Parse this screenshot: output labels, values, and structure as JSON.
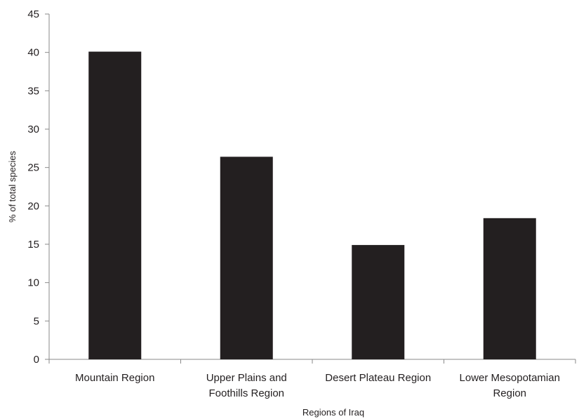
{
  "chart_data": {
    "type": "bar",
    "title": "",
    "xlabel": "Regions of Iraq",
    "ylabel": "% of total species",
    "ylim": [
      0,
      45
    ],
    "yticks": [
      0,
      5,
      10,
      15,
      20,
      25,
      30,
      35,
      40,
      45
    ],
    "grid": false,
    "categories": [
      "Mountain Region",
      "Upper Plains and Foothills Region",
      "Desert Plateau Region",
      "Lower Mesopotamian Region"
    ],
    "category_lines": [
      [
        "Mountain Region"
      ],
      [
        "Upper Plains and",
        "Foothills Region"
      ],
      [
        "Desert Plateau  Region"
      ],
      [
        "Lower Mesopotamian",
        "Region"
      ]
    ],
    "values": [
      40.1,
      26.4,
      14.9,
      18.4
    ],
    "bar_color": "#231f20",
    "axis_color": "#8a8a8a"
  }
}
